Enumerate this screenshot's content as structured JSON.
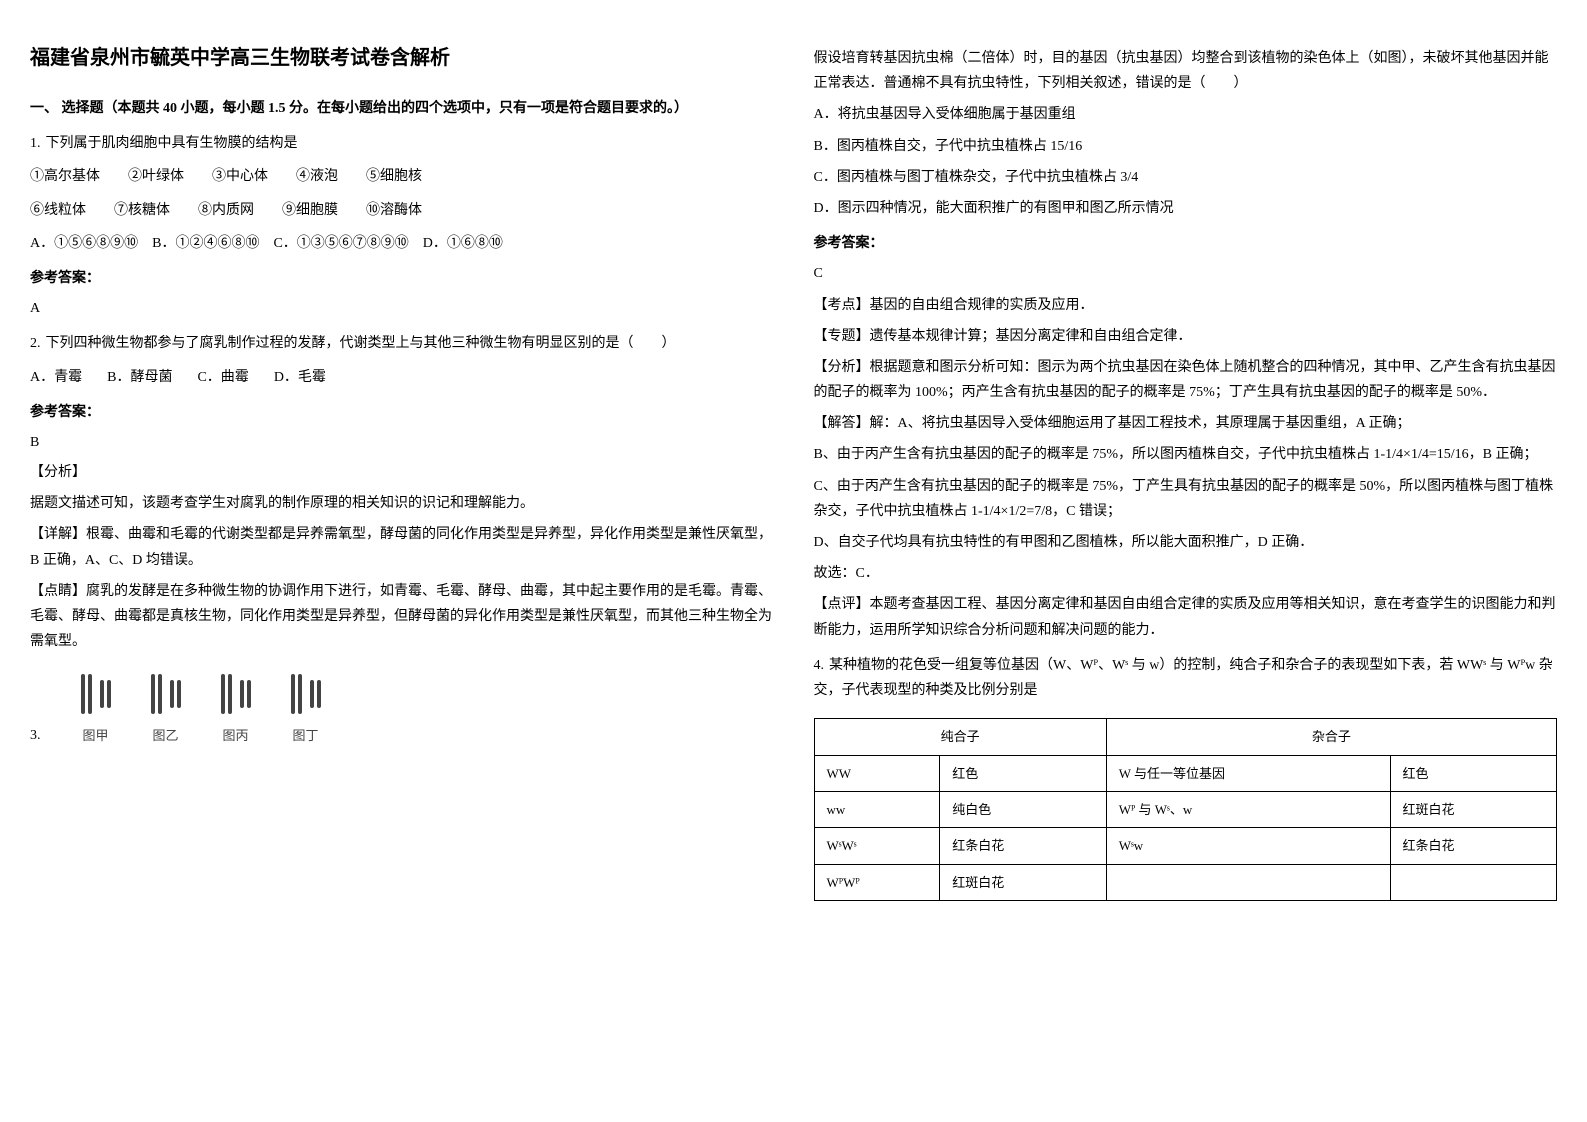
{
  "title": "福建省泉州市毓英中学高三生物联考试卷含解析",
  "section1_heading": "一、 选择题（本题共 40 小题，每小题 1.5 分。在每小题给出的四个选项中，只有一项是符合题目要求的。）",
  "q1": {
    "num": "1.",
    "text": "下列属于肌肉细胞中具有生物膜的结构是",
    "items": "①高尔基体　　②叶绿体　　③中心体　　④液泡　　⑤细胞核",
    "items2": "⑥线粒体　　⑦核糖体　　⑧内质网　　⑨细胞膜　　⑩溶酶体",
    "options": "A．①⑤⑥⑧⑨⑩　B．①②④⑥⑧⑩　C．①③⑤⑥⑦⑧⑨⑩　D．①⑥⑧⑩",
    "answer_label": "参考答案：",
    "answer": "A"
  },
  "q2": {
    "num": "2.",
    "text": "下列四种微生物都参与了腐乳制作过程的发酵，代谢类型上与其他三种微生物有明显区别的是（　　）",
    "options": [
      "A．青霉",
      "B．酵母菌",
      "C．曲霉",
      "D．毛霉"
    ],
    "answer_label": "参考答案：",
    "answer": "B",
    "analysis_label": "【分析】",
    "analysis_text": "据题文描述可知，该题考查学生对腐乳的制作原理的相关知识的识记和理解能力。",
    "detail_label": "【详解】",
    "detail_text": "根霉、曲霉和毛霉的代谢类型都是异养需氧型，酵母菌的同化作用类型是异养型，异化作用类型是兼性厌氧型，B 正确，A、C、D 均错误。",
    "note_label": "【点睛】",
    "note_text": "腐乳的发酵是在多种微生物的协调作用下进行，如青霉、毛霉、酵母、曲霉，其中起主要作用的是毛霉。青霉、毛霉、酵母、曲霉都是真核生物，同化作用类型是异养型，但酵母菌的异化作用类型是兼性厌氧型，而其他三种生物全为需氧型。"
  },
  "q3": {
    "num": "3.",
    "figures": [
      "图甲",
      "图乙",
      "图丙",
      "图丁"
    ],
    "intro": "假设培育转基因抗虫棉（二倍体）时，目的基因（抗虫基因）均整合到该植物的染色体上（如图），未破坏其他基因并能正常表达．普通棉不具有抗虫特性，下列相关叙述，错误的是（　　）",
    "opts": {
      "A": "A．将抗虫基因导入受体细胞属于基因重组",
      "B": "B．图丙植株自交，子代中抗虫植株占 15/16",
      "C": "C．图丙植株与图丁植株杂交，子代中抗虫植株占 3/4",
      "D": "D．图示四种情况，能大面积推广的有图甲和图乙所示情况"
    },
    "answer_label": "参考答案：",
    "answer": "C",
    "kaodian": "【考点】基因的自由组合规律的实质及应用．",
    "zhuanti": "【专题】遗传基本规律计算；基因分离定律和自由组合定律．",
    "fenxi": "【分析】根据题意和图示分析可知：图示为两个抗虫基因在染色体上随机整合的四种情况，其中甲、乙产生含有抗虫基因的配子的概率为 100%；丙产生含有抗虫基因的配子的概率是 75%；丁产生具有抗虫基因的配子的概率是 50%．",
    "jieda": "【解答】解：A、将抗虫基因导入受体细胞运用了基因工程技术，其原理属于基因重组，A 正确；",
    "jieda_b": "B、由于丙产生含有抗虫基因的配子的概率是 75%，所以图丙植株自交，子代中抗虫植株占 1-1/4×1/4=15/16，B 正确；",
    "jieda_c": "C、由于丙产生含有抗虫基因的配子的概率是 75%，丁产生具有抗虫基因的配子的概率是 50%，所以图丙植株与图丁植株杂交，子代中抗虫植株占 1-1/4×1/2=7/8，C 错误；",
    "jieda_d": "D、自交子代均具有抗虫特性的有甲图和乙图植株，所以能大面积推广，D 正确．",
    "guxuan": "故选：C．",
    "dianping": "【点评】本题考查基因工程、基因分离定律和基因自由组合定律的实质及应用等相关知识，意在考查学生的识图能力和判断能力，运用所学知识综合分析问题和解决问题的能力．"
  },
  "q4": {
    "num": "4.",
    "text": "某种植物的花色受一组复等位基因（W、Wᴾ、Wˢ 与 w）的控制，纯合子和杂合子的表现型如下表，若 WWˢ 与 Wᴾw 杂交，子代表现型的种类及比例分别是",
    "table": {
      "headers_span": [
        "纯合子",
        "杂合子"
      ],
      "rows": [
        [
          "WW",
          "红色",
          "W 与任一等位基因",
          "红色"
        ],
        [
          "ww",
          "纯白色",
          "Wᴾ 与 Wˢ、w",
          "红斑白花"
        ],
        [
          "WˢWˢ",
          "红条白花",
          "Wˢw",
          "红条白花"
        ],
        [
          "WᴾWᴾ",
          "红斑白花",
          "",
          ""
        ]
      ]
    }
  }
}
